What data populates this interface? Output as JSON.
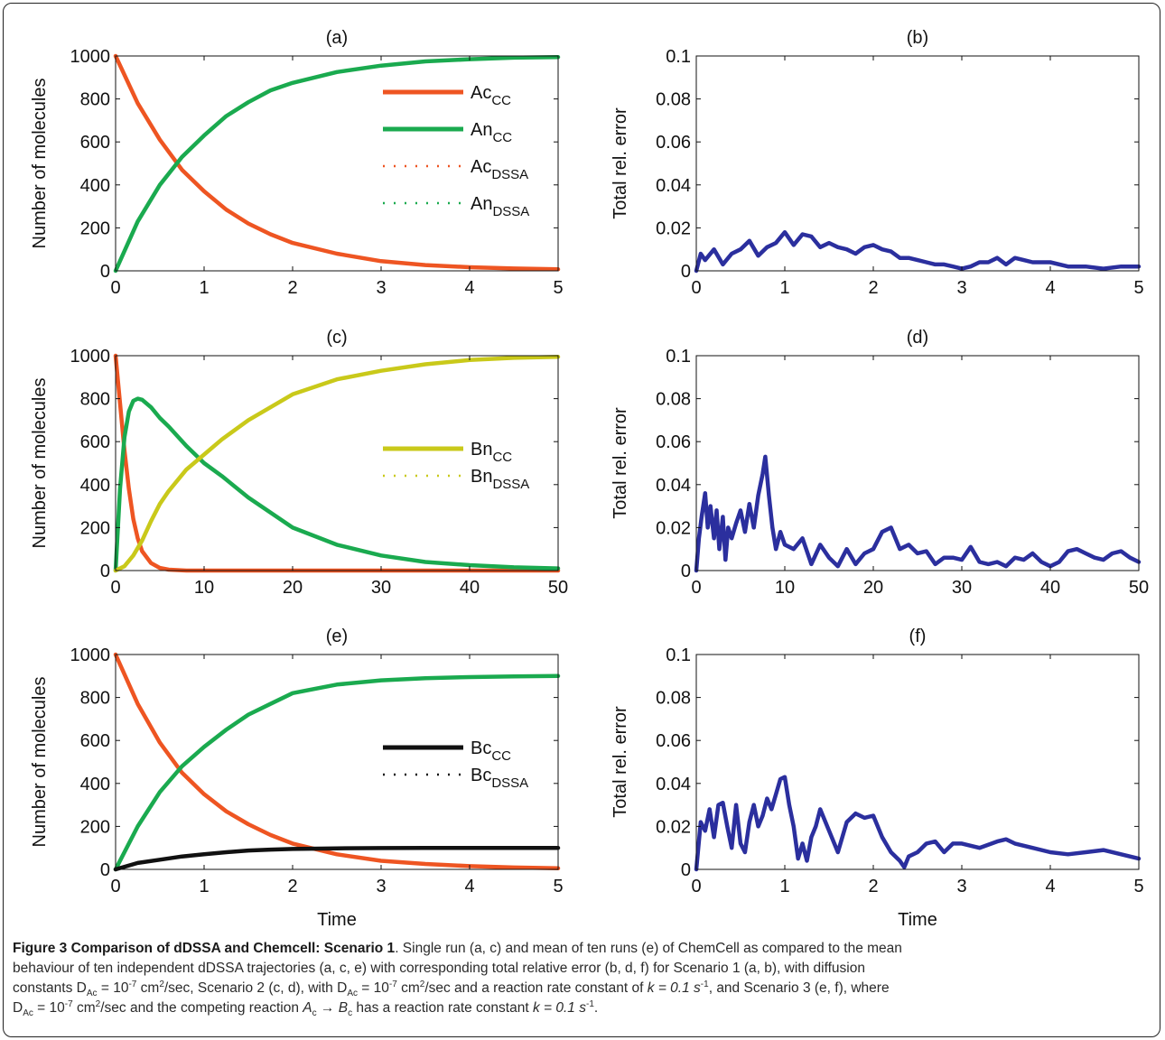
{
  "chart_data": [
    {
      "panel": "(a)",
      "type": "line",
      "xlim": [
        0,
        5
      ],
      "ylim": [
        0,
        1000
      ],
      "xticks": [
        "0",
        "1",
        "2",
        "3",
        "4",
        "5"
      ],
      "yticks": [
        "0",
        "200",
        "400",
        "600",
        "800",
        "1000"
      ],
      "xlabel": "",
      "ylabel": "Number of molecules",
      "legend": {
        "placement": "top-right",
        "entries": [
          {
            "base": "Ac",
            "sub": "CC",
            "style": "solid",
            "color": "#ee5522"
          },
          {
            "base": "An",
            "sub": "CC",
            "style": "solid",
            "color": "#1aaa4f"
          },
          {
            "base": "Ac",
            "sub": "DSSA",
            "style": "dotted",
            "color": "#ee5522"
          },
          {
            "base": "An",
            "sub": "DSSA",
            "style": "dotted",
            "color": "#1aaa4f"
          }
        ]
      },
      "series": [
        {
          "color": "#ee5522",
          "x": [
            0,
            0.25,
            0.5,
            0.75,
            1,
            1.25,
            1.5,
            1.75,
            2,
            2.5,
            3,
            3.5,
            4,
            4.5,
            5
          ],
          "y": [
            1000,
            780,
            610,
            470,
            370,
            285,
            220,
            170,
            130,
            80,
            45,
            27,
            17,
            11,
            7
          ]
        },
        {
          "color": "#1aaa4f",
          "x": [
            0,
            0.25,
            0.5,
            0.75,
            1,
            1.25,
            1.5,
            1.75,
            2,
            2.5,
            3,
            3.5,
            4,
            4.5,
            5
          ],
          "y": [
            0,
            230,
            400,
            530,
            630,
            720,
            785,
            840,
            875,
            925,
            955,
            975,
            985,
            992,
            995
          ]
        }
      ]
    },
    {
      "panel": "(b)",
      "type": "line",
      "xlim": [
        0,
        5
      ],
      "ylim": [
        0,
        0.1
      ],
      "xticks": [
        "0",
        "1",
        "2",
        "3",
        "4",
        "5"
      ],
      "yticks": [
        "0",
        "0.02",
        "0.04",
        "0.06",
        "0.08",
        "0.1"
      ],
      "xlabel": "",
      "ylabel": "Total rel. error",
      "series": [
        {
          "color": "#2b2f9e",
          "x": [
            0,
            0.05,
            0.1,
            0.2,
            0.3,
            0.4,
            0.5,
            0.6,
            0.7,
            0.8,
            0.9,
            1.0,
            1.1,
            1.2,
            1.3,
            1.4,
            1.5,
            1.6,
            1.7,
            1.8,
            1.9,
            2.0,
            2.1,
            2.2,
            2.3,
            2.4,
            2.5,
            2.6,
            2.7,
            2.8,
            2.9,
            3.0,
            3.1,
            3.2,
            3.3,
            3.4,
            3.5,
            3.6,
            3.7,
            3.8,
            4.0,
            4.2,
            4.4,
            4.6,
            4.8,
            5.0
          ],
          "y": [
            0,
            0.008,
            0.005,
            0.01,
            0.003,
            0.008,
            0.01,
            0.014,
            0.007,
            0.011,
            0.013,
            0.018,
            0.012,
            0.017,
            0.016,
            0.011,
            0.013,
            0.011,
            0.01,
            0.008,
            0.011,
            0.012,
            0.01,
            0.009,
            0.006,
            0.006,
            0.005,
            0.004,
            0.003,
            0.003,
            0.002,
            0.001,
            0.002,
            0.004,
            0.004,
            0.006,
            0.003,
            0.006,
            0.005,
            0.004,
            0.004,
            0.002,
            0.002,
            0.001,
            0.002,
            0.002
          ]
        }
      ]
    },
    {
      "panel": "(c)",
      "type": "line",
      "xlim": [
        0,
        50
      ],
      "ylim": [
        0,
        1000
      ],
      "xticks": [
        "0",
        "10",
        "20",
        "30",
        "40",
        "50"
      ],
      "yticks": [
        "0",
        "200",
        "400",
        "600",
        "800",
        "1000"
      ],
      "xlabel": "",
      "ylabel": "Number of molecules",
      "legend": {
        "placement": "right",
        "entries": [
          {
            "base": "Bn",
            "sub": "CC",
            "style": "solid",
            "color": "#c9c91a"
          },
          {
            "base": "Bn",
            "sub": "DSSA",
            "style": "dotted",
            "color": "#c9c91a"
          }
        ]
      },
      "series": [
        {
          "color": "#ee5522",
          "x": [
            0,
            0.5,
            1,
            1.5,
            2,
            2.5,
            3,
            4,
            5,
            6,
            8,
            50
          ],
          "y": [
            1000,
            780,
            560,
            380,
            240,
            150,
            90,
            35,
            12,
            4,
            0,
            0
          ]
        },
        {
          "color": "#1aaa4f",
          "x": [
            0,
            0.5,
            1,
            1.5,
            2,
            2.5,
            3,
            4,
            5,
            6,
            8,
            10,
            12,
            15,
            20,
            25,
            30,
            35,
            40,
            45,
            50
          ],
          "y": [
            0,
            380,
            620,
            740,
            790,
            800,
            795,
            760,
            710,
            670,
            580,
            500,
            440,
            340,
            200,
            120,
            70,
            40,
            25,
            15,
            10
          ]
        },
        {
          "color": "#c9c91a",
          "x": [
            0,
            1,
            2,
            3,
            4,
            5,
            6,
            8,
            10,
            12,
            15,
            20,
            25,
            30,
            35,
            40,
            45,
            50
          ],
          "y": [
            0,
            20,
            70,
            140,
            230,
            310,
            370,
            470,
            540,
            610,
            700,
            820,
            890,
            930,
            960,
            980,
            990,
            995
          ]
        }
      ]
    },
    {
      "panel": "(d)",
      "type": "line",
      "xlim": [
        0,
        50
      ],
      "ylim": [
        0,
        0.1
      ],
      "xticks": [
        "0",
        "10",
        "20",
        "30",
        "40",
        "50"
      ],
      "yticks": [
        "0",
        "0.02",
        "0.04",
        "0.06",
        "0.08",
        "0.1"
      ],
      "xlabel": "",
      "ylabel": "Total rel. error",
      "series": [
        {
          "color": "#2b2f9e",
          "x": [
            0,
            0.3,
            0.6,
            1,
            1.3,
            1.6,
            2,
            2.3,
            2.6,
            3,
            3.3,
            3.6,
            4,
            4.5,
            5,
            5.5,
            6,
            6.5,
            7,
            7.5,
            7.8,
            8.2,
            8.6,
            9,
            9.5,
            10,
            11,
            12,
            13,
            14,
            15,
            16,
            17,
            18,
            19,
            20,
            21,
            22,
            23,
            24,
            25,
            26,
            27,
            28,
            29,
            30,
            31,
            32,
            33,
            34,
            35,
            36,
            37,
            38,
            39,
            40,
            41,
            42,
            43,
            44,
            45,
            46,
            47,
            48,
            49,
            50
          ],
          "y": [
            0,
            0.015,
            0.025,
            0.036,
            0.02,
            0.03,
            0.015,
            0.028,
            0.01,
            0.025,
            0.005,
            0.02,
            0.015,
            0.022,
            0.028,
            0.018,
            0.031,
            0.02,
            0.035,
            0.045,
            0.053,
            0.035,
            0.02,
            0.01,
            0.018,
            0.012,
            0.01,
            0.015,
            0.003,
            0.012,
            0.006,
            0.002,
            0.01,
            0.003,
            0.008,
            0.01,
            0.018,
            0.02,
            0.01,
            0.012,
            0.008,
            0.009,
            0.003,
            0.006,
            0.006,
            0.005,
            0.011,
            0.004,
            0.003,
            0.004,
            0.002,
            0.006,
            0.005,
            0.008,
            0.004,
            0.002,
            0.004,
            0.009,
            0.01,
            0.008,
            0.006,
            0.005,
            0.008,
            0.009,
            0.006,
            0.004
          ]
        }
      ]
    },
    {
      "panel": "(e)",
      "type": "line",
      "xlim": [
        0,
        5
      ],
      "ylim": [
        0,
        1000
      ],
      "xticks": [
        "0",
        "1",
        "2",
        "3",
        "4",
        "5"
      ],
      "yticks": [
        "0",
        "200",
        "400",
        "600",
        "800",
        "1000"
      ],
      "xlabel": "Time",
      "ylabel": "Number of molecules",
      "legend": {
        "placement": "right",
        "entries": [
          {
            "base": "Bc",
            "sub": "CC",
            "style": "solid",
            "color": "#111111"
          },
          {
            "base": "Bc",
            "sub": "DSSA",
            "style": "dotted",
            "color": "#111111"
          }
        ]
      },
      "series": [
        {
          "color": "#ee5522",
          "x": [
            0,
            0.25,
            0.5,
            0.75,
            1,
            1.25,
            1.5,
            1.75,
            2,
            2.5,
            3,
            3.5,
            4,
            4.5,
            5
          ],
          "y": [
            1000,
            770,
            590,
            450,
            350,
            270,
            210,
            160,
            120,
            70,
            40,
            25,
            15,
            9,
            5
          ]
        },
        {
          "color": "#1aaa4f",
          "x": [
            0,
            0.25,
            0.5,
            0.75,
            1,
            1.25,
            1.5,
            1.75,
            2,
            2.5,
            3,
            3.5,
            4,
            4.5,
            5
          ],
          "y": [
            0,
            200,
            360,
            480,
            570,
            650,
            720,
            770,
            820,
            860,
            880,
            890,
            895,
            898,
            900
          ]
        },
        {
          "color": "#111111",
          "x": [
            0,
            0.25,
            0.5,
            0.75,
            1,
            1.25,
            1.5,
            1.75,
            2,
            2.5,
            3,
            3.5,
            4,
            4.5,
            5
          ],
          "y": [
            0,
            30,
            45,
            60,
            70,
            80,
            88,
            92,
            95,
            98,
            99,
            100,
            100,
            100,
            100
          ]
        }
      ]
    },
    {
      "panel": "(f)",
      "type": "line",
      "xlim": [
        0,
        5
      ],
      "ylim": [
        0,
        0.1
      ],
      "xticks": [
        "0",
        "1",
        "2",
        "3",
        "4",
        "5"
      ],
      "yticks": [
        "0",
        "0.02",
        "0.04",
        "0.06",
        "0.08",
        "0.1"
      ],
      "xlabel": "Time",
      "ylabel": "Total rel. error",
      "series": [
        {
          "color": "#2b2f9e",
          "x": [
            0,
            0.05,
            0.1,
            0.15,
            0.2,
            0.25,
            0.3,
            0.35,
            0.4,
            0.45,
            0.5,
            0.55,
            0.6,
            0.65,
            0.7,
            0.75,
            0.8,
            0.85,
            0.9,
            0.95,
            1.0,
            1.05,
            1.1,
            1.15,
            1.2,
            1.25,
            1.3,
            1.35,
            1.4,
            1.5,
            1.6,
            1.7,
            1.8,
            1.9,
            2.0,
            2.1,
            2.2,
            2.3,
            2.35,
            2.4,
            2.5,
            2.6,
            2.7,
            2.8,
            2.9,
            3.0,
            3.2,
            3.4,
            3.5,
            3.6,
            3.8,
            4.0,
            4.2,
            4.4,
            4.6,
            4.8,
            5.0
          ],
          "y": [
            0,
            0.022,
            0.018,
            0.028,
            0.015,
            0.03,
            0.031,
            0.02,
            0.01,
            0.03,
            0.012,
            0.008,
            0.022,
            0.03,
            0.02,
            0.025,
            0.033,
            0.028,
            0.035,
            0.042,
            0.043,
            0.03,
            0.02,
            0.005,
            0.012,
            0.004,
            0.015,
            0.02,
            0.028,
            0.018,
            0.008,
            0.022,
            0.026,
            0.024,
            0.025,
            0.015,
            0.008,
            0.004,
            0.001,
            0.006,
            0.008,
            0.012,
            0.013,
            0.008,
            0.012,
            0.012,
            0.01,
            0.013,
            0.014,
            0.012,
            0.01,
            0.008,
            0.007,
            0.008,
            0.009,
            0.007,
            0.005
          ]
        }
      ]
    }
  ],
  "caption": {
    "title": "Figure 3 Comparison of dDSSA and Chemcell: Scenario 1",
    "l1": ". Single run (a, c) and mean of ten runs (e) of ChemCell as compared to the mean",
    "l2": "behaviour of ten independent dDSSA trajectories (a, c, e) with corresponding total relative error (b, d, f) for Scenario 1 (a, b), with diffusion",
    "l3a": "constants D",
    "sub1": "Ac",
    "l3b": " = 10",
    "sup1": "-7",
    "l3c": " cm",
    "sup2": "2",
    "l3d": "/sec, Scenario 2 (c, d), with D",
    "sub2": "Ac",
    "l3e": " = 10",
    "sup3": "-7",
    "l3f": " cm",
    "sup4": "2",
    "l3g": "/sec and a reaction rate constant of ",
    "k1": "k = 0.1 s",
    "sup5": "-1",
    "l3h": ", and Scenario 3 (e, f), where",
    "l4a": "D",
    "sub3": "Ac",
    "l4b": " = 10",
    "sup6": "-7",
    "l4c": " cm",
    "sup7": "2",
    "l4d": "/sec and the competing reaction ",
    "r1": "A",
    "sub4": "c",
    "arrow": " → ",
    "r2": "B",
    "sub5": "c",
    "l4e": " has a reaction rate constant ",
    "k2": "k = 0.1 s",
    "sup8": "-1",
    "l4f": "."
  }
}
